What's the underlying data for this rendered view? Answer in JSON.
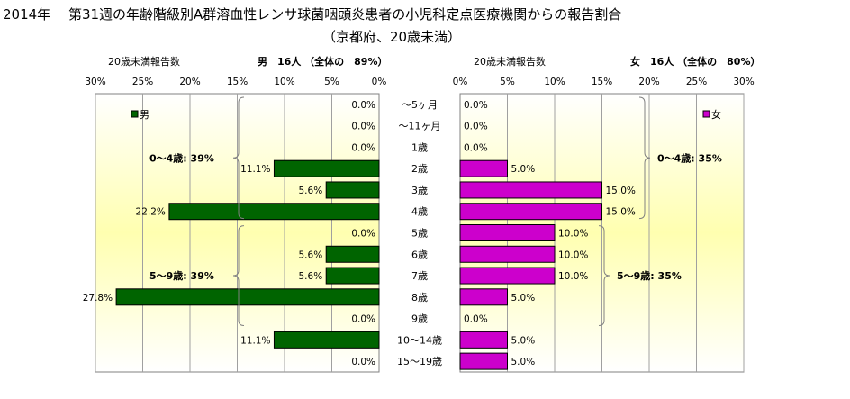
{
  "title": {
    "line1": "2014年　 第31週の年齢階級別A群溶血性レンサ球菌咽頭炎患者の小児科定点医療機関からの報告割合",
    "line2": "（京都府、20歳未満）"
  },
  "chart_data": [
    {
      "type": "bar",
      "orientation": "horizontal",
      "direction": "right-to-left",
      "axis_title": "20歳未満報告数",
      "panel_title": "男　16人 （全体の　89%）",
      "legend": "男",
      "legend_placement": "top-left",
      "color": "#006400",
      "xlim": [
        0,
        30
      ],
      "ticks": [
        "0%",
        "5%",
        "10%",
        "15%",
        "20%",
        "25%",
        "30%"
      ],
      "categories": [
        "～5ヶ月",
        "～11ヶ月",
        "1歳",
        "2歳",
        "3歳",
        "4歳",
        "5歳",
        "6歳",
        "7歳",
        "8歳",
        "9歳",
        "10～14歳",
        "15～19歳"
      ],
      "values": [
        0,
        0,
        0,
        11.1,
        5.6,
        22.2,
        0,
        5.6,
        5.6,
        27.8,
        0,
        11.1,
        0
      ],
      "labels": [
        "0.0%",
        "0.0%",
        "0.0%",
        "11.1%",
        "5.6%",
        "22.2%",
        "0.0%",
        "5.6%",
        "5.6%",
        "27.8%",
        "0.0%",
        "11.1%",
        "0.0%"
      ],
      "groups": [
        {
          "label": "0～4歳: 39%",
          "from": 0,
          "to": 5
        },
        {
          "label": "5～9歳: 39%",
          "from": 6,
          "to": 10
        }
      ]
    },
    {
      "type": "bar",
      "orientation": "horizontal",
      "direction": "left-to-right",
      "axis_title": "20歳未満報告数",
      "panel_title": "女　16人 （全体の　80%）",
      "legend": "女",
      "legend_placement": "top-right",
      "color": "#cc00cc",
      "xlim": [
        0,
        30
      ],
      "ticks": [
        "0%",
        "5%",
        "10%",
        "15%",
        "20%",
        "25%",
        "30%"
      ],
      "categories": [
        "～5ヶ月",
        "～11ヶ月",
        "1歳",
        "2歳",
        "3歳",
        "4歳",
        "5歳",
        "6歳",
        "7歳",
        "8歳",
        "9歳",
        "10～14歳",
        "15～19歳"
      ],
      "values": [
        0,
        0,
        0,
        5,
        15,
        15,
        10,
        10,
        10,
        5,
        0,
        5,
        5
      ],
      "labels": [
        "0.0%",
        "0.0%",
        "0.0%",
        "5.0%",
        "15.0%",
        "15.0%",
        "10.0%",
        "10.0%",
        "10.0%",
        "5.0%",
        "0.0%",
        "5.0%",
        "5.0%"
      ],
      "groups": [
        {
          "label": "0～4歳: 35%",
          "from": 0,
          "to": 5
        },
        {
          "label": "5～9歳: 35%",
          "from": 6,
          "to": 10
        }
      ]
    }
  ]
}
